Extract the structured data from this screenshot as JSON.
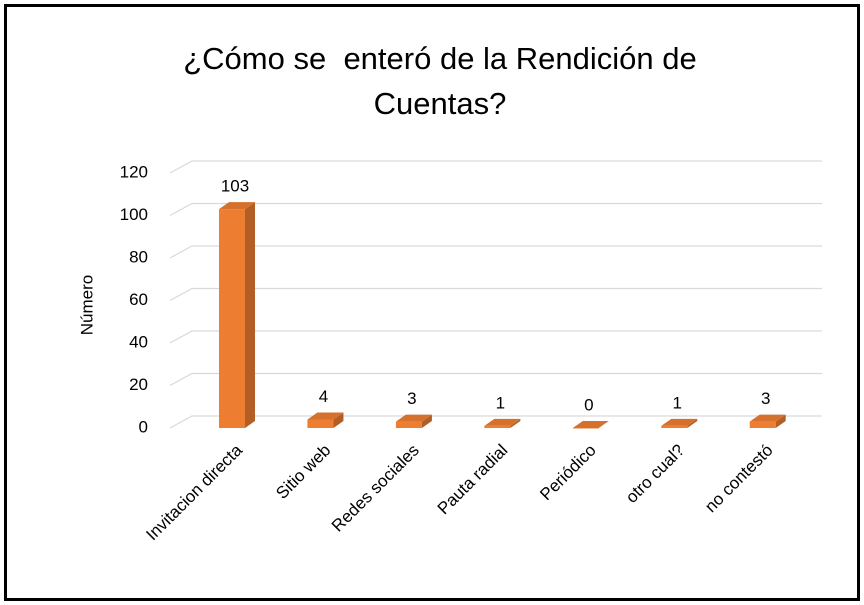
{
  "chart_data": {
    "type": "bar3d",
    "title": "¿Cómo se  enteró de la Rendición de Cuentas?",
    "y_label": "Número",
    "categories": [
      "Invitacion directa",
      "Sitio web",
      "Redes sociales",
      "Pauta radial",
      "Periódico",
      "otro cual?",
      "no contestó"
    ],
    "values": [
      103,
      4,
      3,
      1,
      0,
      1,
      3
    ],
    "color": "#ed7d31",
    "ylim": [
      0,
      120
    ],
    "yticks": [
      0,
      20,
      40,
      60,
      80,
      100,
      120
    ],
    "grid": true
  }
}
